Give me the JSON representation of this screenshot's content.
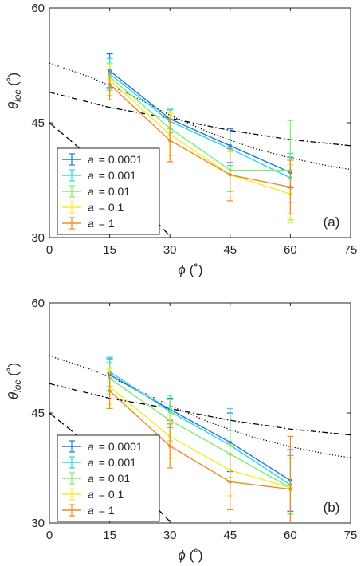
{
  "chart_data": [
    {
      "type": "line",
      "panel_label": "(a)",
      "xlabel": "ϕ (˚)",
      "ylabel": "θloc (˚)",
      "ylabel_main": "θ",
      "ylabel_sub": "loc",
      "ylabel_unit": "(˚)",
      "xlabel_main": "ϕ",
      "xlabel_unit": "(˚)",
      "xlim": [
        0,
        75
      ],
      "ylim": [
        30,
        60
      ],
      "xticks": [
        0,
        15,
        30,
        45,
        60,
        75
      ],
      "yticks": [
        30,
        45,
        60
      ],
      "legend_position": "bottom-left",
      "grid": false,
      "x": [
        15,
        30,
        45,
        60
      ],
      "series": [
        {
          "name": "a = 0.0001",
          "legend_var": "a",
          "legend_val": "= 0.0001",
          "color": "#1f77e0",
          "values": [
            51.8,
            45.5,
            42.0,
            38.5
          ],
          "errors": [
            2.2,
            1.2,
            2.2,
            2.0
          ]
        },
        {
          "name": "a = 0.001",
          "legend_var": "a",
          "legend_val": "= 0.001",
          "color": "#27d8e6",
          "values": [
            51.4,
            45.2,
            41.6,
            37.8
          ],
          "errors": [
            2.0,
            1.5,
            2.2,
            3.2
          ]
        },
        {
          "name": "a = 0.01",
          "legend_var": "a",
          "legend_val": "= 0.01",
          "color": "#7fec6e",
          "values": [
            51.0,
            44.3,
            38.8,
            38.8
          ],
          "errors": [
            1.8,
            2.5,
            2.8,
            6.5
          ]
        },
        {
          "name": "a = 0.1",
          "legend_var": "a",
          "legend_val": "= 0.1",
          "color": "#f2ec2c",
          "values": [
            50.6,
            43.5,
            38.2,
            35.7
          ],
          "errors": [
            2.0,
            2.8,
            3.0,
            3.8
          ]
        },
        {
          "name": "a = 1",
          "legend_var": "a",
          "legend_val": "= 1",
          "color": "#f08c1e",
          "values": [
            50.0,
            42.7,
            38.2,
            36.6
          ],
          "errors": [
            2.0,
            2.8,
            3.4,
            3.5
          ]
        }
      ]
    },
    {
      "type": "line",
      "panel_label": "(b)",
      "xlabel": "ϕ (˚)",
      "ylabel": "θloc (˚)",
      "ylabel_main": "θ",
      "ylabel_sub": "loc",
      "ylabel_unit": "(˚)",
      "xlabel_main": "ϕ",
      "xlabel_unit": "(˚)",
      "xlim": [
        0,
        75
      ],
      "ylim": [
        30,
        60
      ],
      "xticks": [
        0,
        15,
        30,
        45,
        60,
        75
      ],
      "yticks": [
        30,
        45,
        60
      ],
      "legend_position": "bottom-left",
      "grid": false,
      "x": [
        15,
        30,
        45,
        60
      ],
      "series": [
        {
          "name": "a = 0.0001",
          "legend_var": "a",
          "legend_val": "= 0.0001",
          "color": "#1f77e0",
          "values": [
            50.2,
            45.5,
            41.0,
            35.8
          ],
          "errors": [
            2.2,
            1.5,
            4.0,
            4.2
          ]
        },
        {
          "name": "a = 0.001",
          "legend_var": "a",
          "legend_val": "= 0.001",
          "color": "#27d8e6",
          "values": [
            50.6,
            45.2,
            40.6,
            35.2
          ],
          "errors": [
            2.0,
            2.2,
            5.0,
            4.0
          ]
        },
        {
          "name": "a = 0.01",
          "legend_var": "a",
          "legend_val": "= 0.01",
          "color": "#7fec6e",
          "values": [
            49.7,
            44.0,
            39.4,
            34.8
          ],
          "errors": [
            2.2,
            2.8,
            3.2,
            4.0
          ]
        },
        {
          "name": "a = 0.1",
          "legend_var": "a",
          "legend_val": "= 0.1",
          "color": "#f2ec2c",
          "values": [
            48.6,
            41.8,
            37.2,
            34.8
          ],
          "errors": [
            2.4,
            3.0,
            3.5,
            4.0
          ]
        },
        {
          "name": "a = 1",
          "legend_var": "a",
          "legend_val": "= 1",
          "color": "#f08c1e",
          "values": [
            48.0,
            40.5,
            35.6,
            34.6
          ],
          "errors": [
            2.4,
            3.0,
            3.8,
            7.2
          ]
        }
      ]
    }
  ],
  "reference_curves": [
    {
      "style": "dotted",
      "x": [
        0,
        10,
        20,
        30,
        40,
        50,
        60,
        70,
        75
      ],
      "y": [
        52.8,
        51.0,
        48.7,
        46.0,
        43.7,
        41.8,
        40.4,
        39.3,
        38.9
      ]
    },
    {
      "style": "dashdot",
      "x": [
        0,
        15,
        30,
        45,
        60,
        75
      ],
      "y": [
        49.0,
        47.0,
        45.6,
        44.0,
        42.8,
        42.0
      ]
    },
    {
      "style": "dashed",
      "x": [
        0,
        5,
        10,
        15,
        20,
        25,
        30
      ],
      "y": [
        45.0,
        42.8,
        40.5,
        38.0,
        35.6,
        33.0,
        30.2
      ]
    }
  ]
}
